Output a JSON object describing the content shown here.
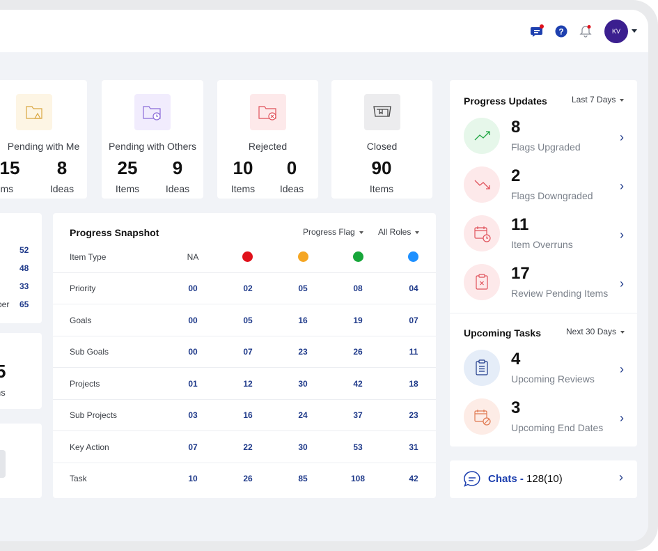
{
  "header": {
    "avatar_initials": "KV"
  },
  "stats": {
    "pending_me": {
      "title": "Pending with Me",
      "items": "15",
      "ideas": "8",
      "items_label": "Items",
      "ideas_label": "Ideas"
    },
    "pending_others": {
      "title": "Pending with Others",
      "items": "25",
      "ideas": "9",
      "items_label": "Items",
      "ideas_label": "Ideas"
    },
    "rejected": {
      "title": "Rejected",
      "items": "10",
      "ideas": "0",
      "items_label": "Items",
      "ideas_label": "Ideas"
    },
    "closed": {
      "title": "Closed",
      "items": "90",
      "items_label": "Items"
    }
  },
  "left_partial": {
    "values": [
      "52",
      "48",
      "33",
      "65"
    ],
    "label_fragment": "ber",
    "big_fragment": "5",
    "sub_fragment": "ns"
  },
  "snapshot": {
    "title": "Progress Snapshot",
    "filter_flag": "Progress Flag",
    "filter_roles": "All Roles",
    "col_header": "Item Type",
    "col_na": "NA",
    "colors": [
      "#e0111b",
      "#f5a623",
      "#17a63a",
      "#1e90ff"
    ],
    "rows": [
      {
        "label": "Priority",
        "vals": [
          "00",
          "02",
          "05",
          "08",
          "04"
        ]
      },
      {
        "label": "Goals",
        "vals": [
          "00",
          "05",
          "16",
          "19",
          "07"
        ]
      },
      {
        "label": "Sub Goals",
        "vals": [
          "00",
          "07",
          "23",
          "26",
          "11"
        ]
      },
      {
        "label": "Projects",
        "vals": [
          "01",
          "12",
          "30",
          "42",
          "18"
        ]
      },
      {
        "label": "Sub Projects",
        "vals": [
          "03",
          "16",
          "24",
          "37",
          "23"
        ]
      },
      {
        "label": "Key Action",
        "vals": [
          "07",
          "22",
          "30",
          "53",
          "31"
        ]
      },
      {
        "label": "Task",
        "vals": [
          "10",
          "26",
          "85",
          "108",
          "42"
        ]
      }
    ]
  },
  "progress_updates": {
    "title": "Progress Updates",
    "range": "Last 7 Days",
    "items": [
      {
        "num": "8",
        "label": "Flags Upgraded"
      },
      {
        "num": "2",
        "label": "Flags Downgraded"
      },
      {
        "num": "11",
        "label": "Item Overruns"
      },
      {
        "num": "17",
        "label": "Review Pending Items"
      }
    ]
  },
  "upcoming": {
    "title": "Upcoming Tasks",
    "range": "Next 30 Days",
    "items": [
      {
        "num": "4",
        "label": "Upcoming Reviews"
      },
      {
        "num": "3",
        "label": "Upcoming End Dates"
      }
    ]
  },
  "chats": {
    "label": "Chats - ",
    "count": "128(10)"
  }
}
